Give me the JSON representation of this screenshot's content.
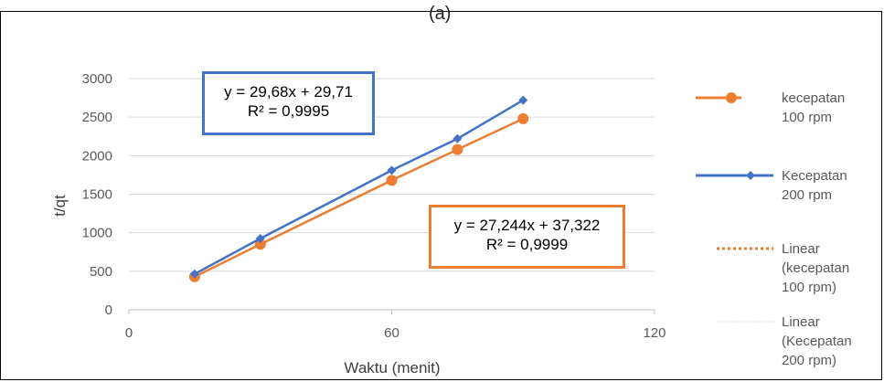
{
  "panel_label": "(a)",
  "colors": {
    "series1": "#ED7D31",
    "series2": "#4472C4",
    "grid": "#D9D9D9",
    "axis": "#BFBFBF"
  },
  "equations": {
    "blue": {
      "line1": "y = 29,68x + 29,71",
      "line2": "R² = 0,9995"
    },
    "orange": {
      "line1": "y = 27,244x + 37,322",
      "line2": "R² = 0,9999"
    }
  },
  "legend": [
    {
      "lines": [
        "kecepatan",
        "100 rpm"
      ],
      "style": "orange-marker"
    },
    {
      "lines": [
        "Kecepatan",
        "200 rpm"
      ],
      "style": "blue-marker"
    },
    {
      "lines": [
        "Linear",
        "(kecepatan",
        "100 rpm)"
      ],
      "style": "orange-dotted"
    },
    {
      "lines": [
        "Linear",
        "(Kecepatan",
        "200 rpm)"
      ],
      "style": "gray-dotted"
    }
  ],
  "chart_data": {
    "type": "scatter",
    "xlabel": "Waktu (menit)",
    "ylabel": "t/qt",
    "xlim": [
      0,
      120
    ],
    "ylim": [
      0,
      3000
    ],
    "xticks": [
      0,
      60,
      120
    ],
    "yticks": [
      0,
      500,
      1000,
      1500,
      2000,
      2500,
      3000
    ],
    "grid": true,
    "legend_position": "right",
    "series": [
      {
        "name": "kecepatan 100 rpm",
        "color": "#ED7D31",
        "marker": "circle",
        "x": [
          15,
          30,
          60,
          75,
          90
        ],
        "y": [
          430,
          850,
          1680,
          2080,
          2480
        ]
      },
      {
        "name": "Kecepatan 200 rpm",
        "color": "#4472C4",
        "marker": "diamond",
        "x": [
          15,
          30,
          60,
          75,
          90
        ],
        "y": [
          465,
          925,
          1810,
          2220,
          2720
        ]
      }
    ]
  }
}
